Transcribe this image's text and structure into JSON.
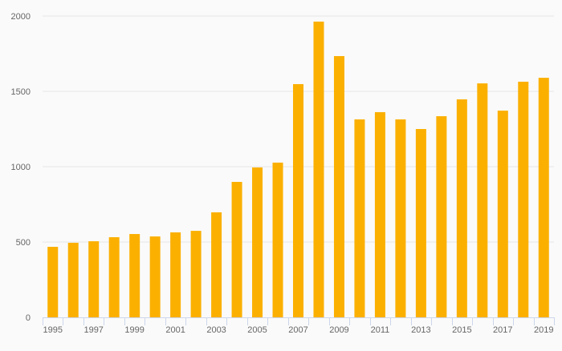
{
  "chart_data": {
    "type": "bar",
    "title": "",
    "xlabel": "",
    "ylabel": "",
    "categories": [
      "1995",
      "1996",
      "1997",
      "1998",
      "1999",
      "2000",
      "2001",
      "2002",
      "2003",
      "2004",
      "2005",
      "2006",
      "2007",
      "2008",
      "2009",
      "2010",
      "2011",
      "2012",
      "2013",
      "2014",
      "2015",
      "2016",
      "2017",
      "2018",
      "2019"
    ],
    "values": [
      468,
      495,
      505,
      532,
      553,
      537,
      564,
      574,
      697,
      899,
      995,
      1027,
      1548,
      1963,
      1734,
      1314,
      1362,
      1314,
      1250,
      1335,
      1447,
      1553,
      1372,
      1564,
      1590
    ],
    "x_tick_labels": [
      "1995",
      "1997",
      "1999",
      "2001",
      "2003",
      "2005",
      "2007",
      "2009",
      "2011",
      "2013",
      "2015",
      "2017",
      "2019"
    ],
    "y_ticks": [
      "0",
      "500",
      "1000",
      "1500",
      "2000"
    ],
    "ylim": [
      0,
      2000
    ],
    "grid": true,
    "bar_color": "#fbb000",
    "grid_color": "#e6e6e6",
    "axis_color": "#ccd6eb"
  }
}
